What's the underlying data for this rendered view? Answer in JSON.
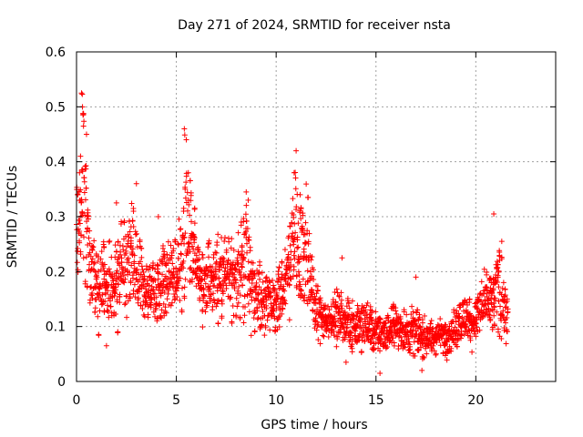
{
  "colors": {
    "series": "#ff0000",
    "grid": "#a0a0a0",
    "axis": "#000000"
  },
  "chart_data": {
    "type": "scatter",
    "title": "Day 271 of 2024, SRMTID for receiver nsta",
    "xlabel": "GPS time / hours",
    "ylabel": "SRMTID / TECUs",
    "xlim": [
      0,
      24
    ],
    "ylim": [
      0,
      0.6
    ],
    "grid": true,
    "marker": "plus",
    "x_ticks": [
      0,
      5,
      10,
      15,
      20
    ],
    "y_ticks": [
      0,
      0.1,
      0.2,
      0.3,
      0.4,
      0.5,
      0.6
    ],
    "x_tick_labels": [
      "0",
      "5",
      "10",
      "15",
      "20"
    ],
    "y_tick_labels": [
      "0",
      "0.1",
      "0.2",
      "0.3",
      "0.4",
      "0.5",
      "0.6"
    ],
    "series": [
      {
        "name": "SRMTID",
        "trend": {
          "hours": [
            0.0,
            0.2,
            0.3,
            0.5,
            0.7,
            1.0,
            1.5,
            2.0,
            2.5,
            2.8,
            3.0,
            3.5,
            4.0,
            4.5,
            5.0,
            5.3,
            5.5,
            5.8,
            6.0,
            6.5,
            7.0,
            7.5,
            8.0,
            8.5,
            9.0,
            9.5,
            10.0,
            10.5,
            10.8,
            11.0,
            11.3,
            11.5,
            12.0,
            12.5,
            13.0,
            13.5,
            14.0,
            14.5,
            15.0,
            15.5,
            16.0,
            16.5,
            17.0,
            17.5,
            18.0,
            18.5,
            19.0,
            19.5,
            20.0,
            20.3,
            20.6,
            20.9,
            21.1,
            21.3,
            21.6
          ],
          "srmtid": [
            0.25,
            0.32,
            0.36,
            0.3,
            0.22,
            0.18,
            0.17,
            0.19,
            0.21,
            0.25,
            0.2,
            0.16,
            0.17,
            0.18,
            0.2,
            0.26,
            0.3,
            0.24,
            0.2,
            0.18,
            0.19,
            0.2,
            0.19,
            0.22,
            0.16,
            0.14,
            0.13,
            0.17,
            0.25,
            0.27,
            0.23,
            0.25,
            0.13,
            0.11,
            0.12,
            0.11,
            0.1,
            0.1,
            0.09,
            0.09,
            0.1,
            0.09,
            0.09,
            0.08,
            0.08,
            0.08,
            0.1,
            0.12,
            0.11,
            0.14,
            0.15,
            0.14,
            0.17,
            0.15,
            0.11
          ],
          "spread": [
            0.08,
            0.12,
            0.14,
            0.12,
            0.06,
            0.06,
            0.06,
            0.07,
            0.08,
            0.1,
            0.06,
            0.05,
            0.05,
            0.06,
            0.07,
            0.1,
            0.13,
            0.09,
            0.06,
            0.06,
            0.06,
            0.06,
            0.06,
            0.1,
            0.06,
            0.05,
            0.05,
            0.06,
            0.1,
            0.12,
            0.09,
            0.1,
            0.04,
            0.03,
            0.04,
            0.04,
            0.04,
            0.04,
            0.035,
            0.035,
            0.035,
            0.035,
            0.035,
            0.03,
            0.03,
            0.03,
            0.035,
            0.04,
            0.04,
            0.05,
            0.05,
            0.05,
            0.07,
            0.06,
            0.03
          ]
        },
        "peaks": [
          {
            "x": 0.25,
            "y": 0.525
          },
          {
            "x": 0.3,
            "y": 0.5
          },
          {
            "x": 0.35,
            "y": 0.465
          },
          {
            "x": 0.5,
            "y": 0.45
          },
          {
            "x": 0.2,
            "y": 0.41
          },
          {
            "x": 0.15,
            "y": 0.38
          },
          {
            "x": 5.4,
            "y": 0.46
          },
          {
            "x": 5.5,
            "y": 0.44
          },
          {
            "x": 5.6,
            "y": 0.38
          },
          {
            "x": 8.5,
            "y": 0.345
          },
          {
            "x": 8.6,
            "y": 0.33
          },
          {
            "x": 11.0,
            "y": 0.42
          },
          {
            "x": 10.9,
            "y": 0.38
          },
          {
            "x": 11.2,
            "y": 0.34
          },
          {
            "x": 11.6,
            "y": 0.335
          },
          {
            "x": 3.0,
            "y": 0.36
          },
          {
            "x": 2.0,
            "y": 0.325
          },
          {
            "x": 4.1,
            "y": 0.3
          },
          {
            "x": 20.9,
            "y": 0.305
          },
          {
            "x": 21.3,
            "y": 0.255
          },
          {
            "x": 17.0,
            "y": 0.19
          },
          {
            "x": 13.3,
            "y": 0.225
          },
          {
            "x": 15.2,
            "y": 0.015
          },
          {
            "x": 17.3,
            "y": 0.02
          },
          {
            "x": 1.5,
            "y": 0.065
          },
          {
            "x": 13.5,
            "y": 0.035
          }
        ]
      }
    ]
  }
}
